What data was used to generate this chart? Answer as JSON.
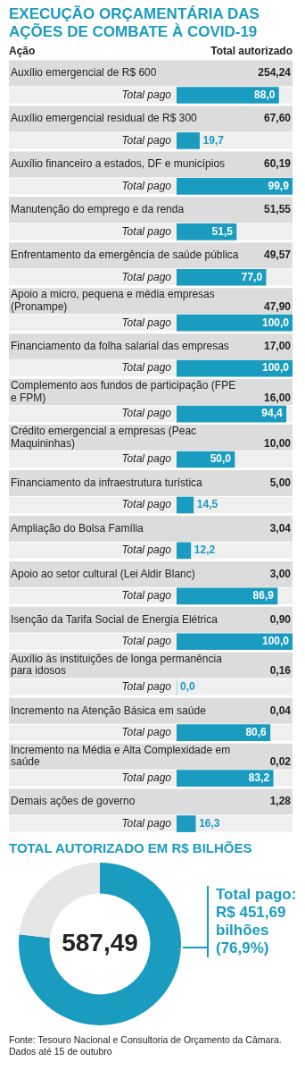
{
  "chart_data": [
    {
      "type": "bar",
      "orientation": "horizontal",
      "title": "EXECUÇÃO ORÇAMENTÁRIA DAS AÇÕES DE COMBATE À COVID-19",
      "ylabel": "Ação",
      "categories": [
        "Auxílio emergencial de R$ 600",
        "Auxílio emergencial residual de R$ 300",
        "Auxílio financeiro a estados, DF e municípios",
        "Manutenção do emprego e da renda",
        "Enfrentamento da emergência de saúde pública",
        "Apoio a micro, pequena e média empresas (Pronampe)",
        "Financiamento da folha salarial das empresas",
        "Complemento aos fundos de participação (FPE e FPM)",
        "Crédito emergencial a empresas (Peac Maquininhas)",
        "Financiamento da infraestrutura turística",
        "Ampliação do Bolsa Família",
        "Apoio ao setor cultural (Lei Aldir Blanc)",
        "Isenção da Tarifa Social de Energia Elétrica",
        "Auxílio às instituições de longa permanência para idosos",
        "Incremento na Atenção Básica em saúde",
        "Incremento na Média e Alta Complexidade em saúde",
        "Demais ações de governo"
      ],
      "series": [
        {
          "name": "Total pago",
          "color": "#1a9cc0",
          "values": [
            88.0,
            19.7,
            99.9,
            51.5,
            77.0,
            100.0,
            100.0,
            94.4,
            50.0,
            14.5,
            12.2,
            86.9,
            100.0,
            0.0,
            80.6,
            83.2,
            16.3
          ],
          "value_labels": [
            "88,0",
            "19,7",
            "99,9",
            "51,5",
            "77,0",
            "100,0",
            "100,0",
            "94,4",
            "50,0",
            "14,5",
            "12,2",
            "86,9",
            "100,0",
            "0,0",
            "80,6",
            "83,2",
            "16,3"
          ]
        }
      ],
      "xlim": [
        0,
        100
      ],
      "tick_labels": false,
      "annotations": [
        "Total autorizado",
        "254,24",
        "67,60",
        "60,19",
        "51,55",
        "49,57",
        "47,90",
        "17,00",
        "16,00",
        "10,00",
        "5,00",
        "3,04",
        "3,00",
        "0,90",
        "0,16",
        "0,04",
        "0,02",
        "1,28"
      ]
    },
    {
      "type": "donut",
      "title": "TOTAL AUTORIZADO EM R$ BILHÕES",
      "categories": [
        null,
        null
      ],
      "values": [
        76.9,
        23.1
      ],
      "colors": [
        "#1a9cc0",
        "#e6e6e6"
      ],
      "annotations": [
        "587,49",
        "Total pago: R$ 451,69 bilhões (76,9%)",
        "Fonte: Tesouro Nacional e Consultoria de Orçamento da Câmara. Dados até 15 de outubro"
      ]
    }
  ]
}
